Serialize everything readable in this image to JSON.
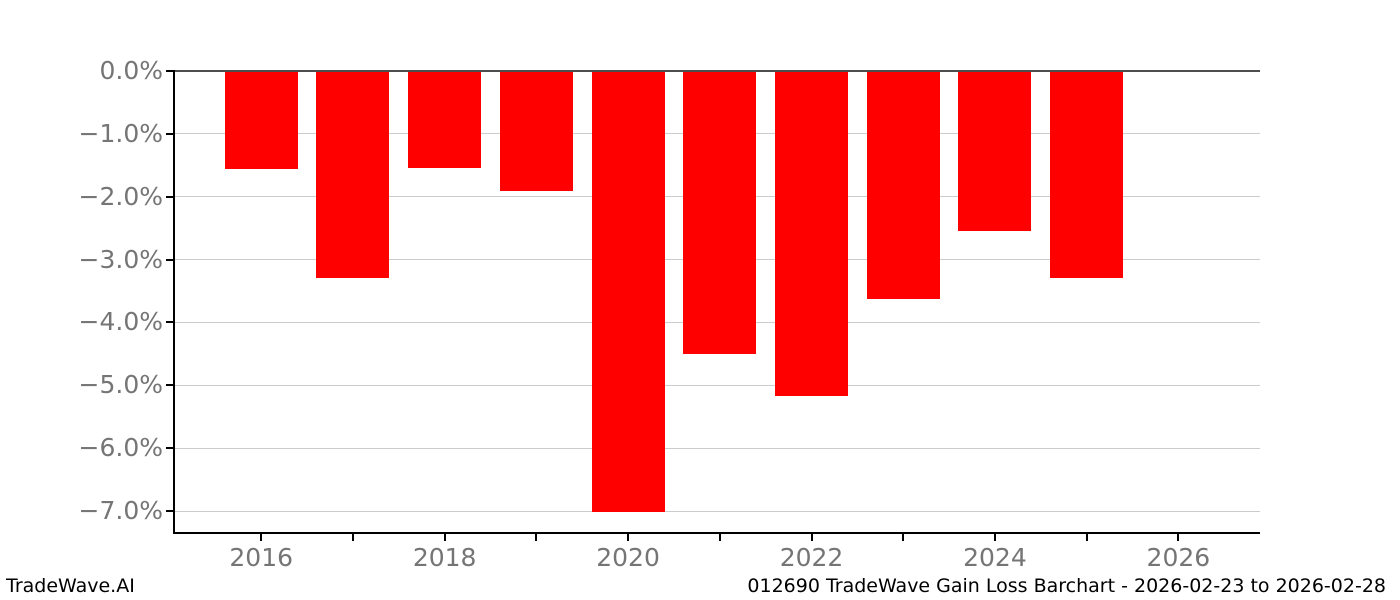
{
  "chart_data": {
    "type": "bar",
    "title": "",
    "xlabel": "",
    "ylabel": "",
    "categories": [
      2016,
      2017,
      2018,
      2019,
      2020,
      2021,
      2022,
      2023,
      2024,
      2025
    ],
    "values": [
      -1.54,
      -3.27,
      -1.53,
      -1.9,
      -7.0,
      -4.49,
      -5.16,
      -3.61,
      -2.53,
      -3.28
    ],
    "unit": "%",
    "bar_color": "#ff0000",
    "grid": true,
    "grid_color": "#cccccc",
    "tick_label_color": "#757575",
    "axis_color": "#000000",
    "top_spine_color": "#4d4d4d",
    "xlim": [
      2015.06,
      2026.89
    ],
    "ylim": [
      -7.35,
      0
    ],
    "x_ticks": [
      {
        "value": 2016,
        "label": "2016"
      },
      {
        "value": 2017,
        "label": ""
      },
      {
        "value": 2018,
        "label": "2018"
      },
      {
        "value": 2019,
        "label": ""
      },
      {
        "value": 2020,
        "label": "2020"
      },
      {
        "value": 2021,
        "label": ""
      },
      {
        "value": 2022,
        "label": "2022"
      },
      {
        "value": 2023,
        "label": ""
      },
      {
        "value": 2024,
        "label": "2024"
      },
      {
        "value": 2025,
        "label": ""
      },
      {
        "value": 2026,
        "label": "2026"
      }
    ],
    "y_ticks": [
      {
        "value": 0,
        "label": "0.0%"
      },
      {
        "value": -1,
        "label": "−1.0%"
      },
      {
        "value": -2,
        "label": "−2.0%"
      },
      {
        "value": -3,
        "label": "−3.0%"
      },
      {
        "value": -4,
        "label": "−4.0%"
      },
      {
        "value": -5,
        "label": "−5.0%"
      },
      {
        "value": -6,
        "label": "−6.0%"
      },
      {
        "value": -7,
        "label": "−7.0%"
      }
    ],
    "legend": null
  },
  "footer": {
    "left": "TradeWave.AI",
    "right": "012690 TradeWave Gain Loss Barchart - 2026-02-23 to 2026-02-28"
  }
}
